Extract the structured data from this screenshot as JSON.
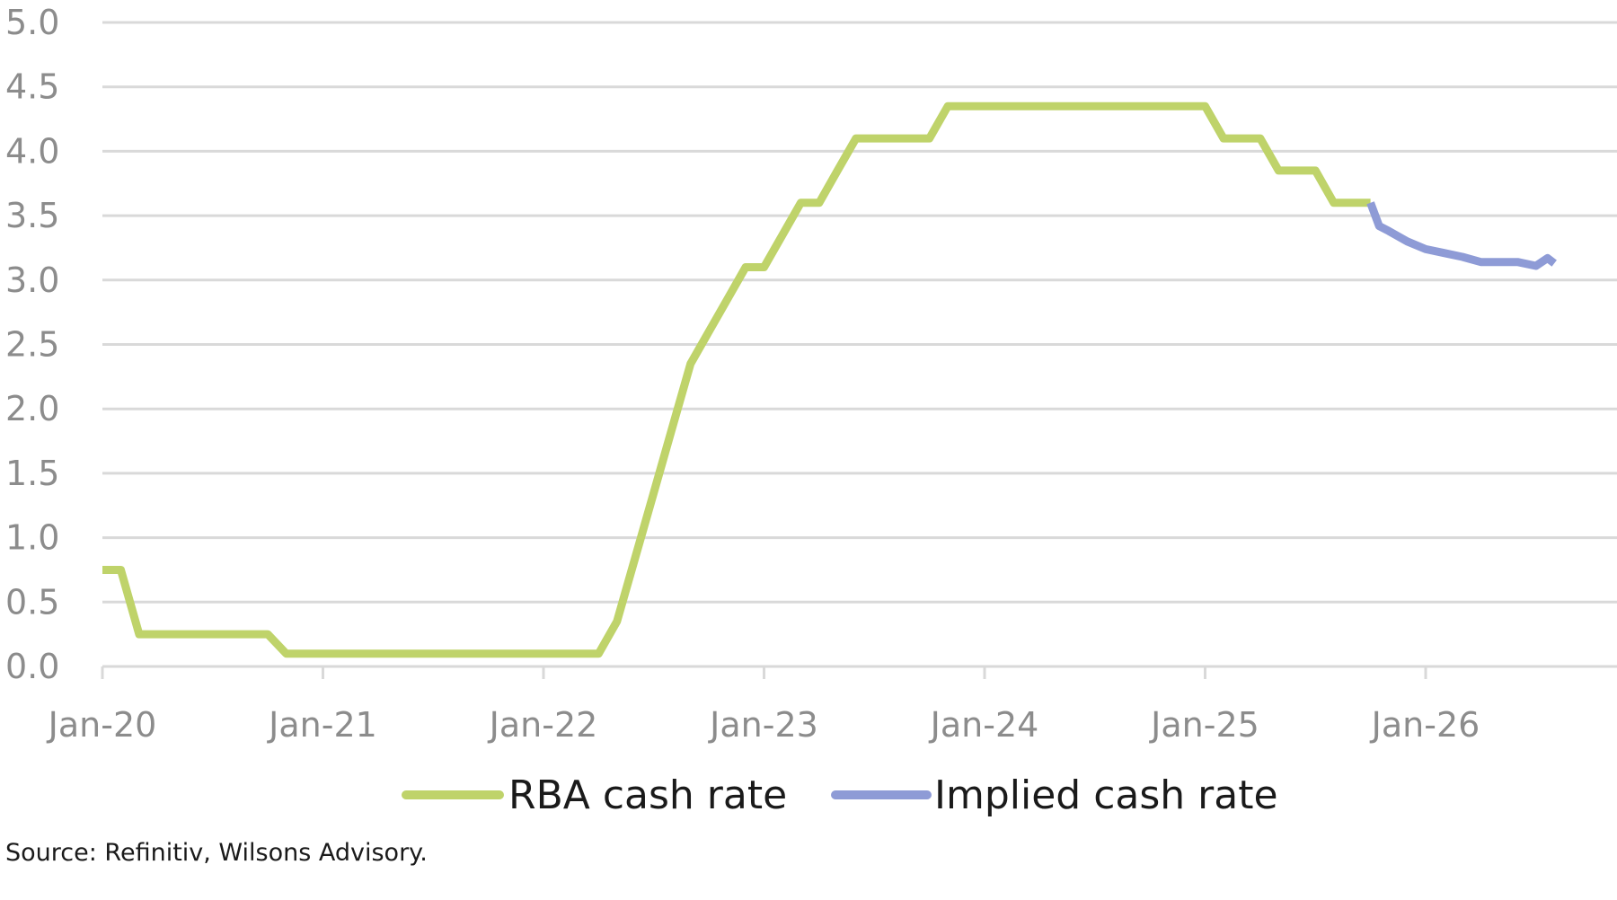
{
  "chart_data": {
    "type": "line",
    "title": "",
    "xlabel": "",
    "ylabel": "",
    "ylim": [
      0,
      5
    ],
    "yticks": [
      "0.0",
      "0.5",
      "1.0",
      "1.5",
      "2.0",
      "2.5",
      "3.0",
      "3.5",
      "4.0",
      "4.5",
      "5.0"
    ],
    "xticks": [
      "Jan-20",
      "Jan-21",
      "Jan-22",
      "Jan-23",
      "Jan-24",
      "Jan-25",
      "Jan-26"
    ],
    "grid": true,
    "legend_position": "bottom",
    "series": [
      {
        "name": "RBA cash rate",
        "color": "#bfd36a",
        "points": [
          [
            "2020-01",
            0.75
          ],
          [
            "2020-02",
            0.75
          ],
          [
            "2020-03",
            0.25
          ],
          [
            "2020-04",
            0.25
          ],
          [
            "2020-05",
            0.25
          ],
          [
            "2020-06",
            0.25
          ],
          [
            "2020-07",
            0.25
          ],
          [
            "2020-08",
            0.25
          ],
          [
            "2020-09",
            0.25
          ],
          [
            "2020-10",
            0.25
          ],
          [
            "2020-11",
            0.1
          ],
          [
            "2020-12",
            0.1
          ],
          [
            "2021-01",
            0.1
          ],
          [
            "2021-02",
            0.1
          ],
          [
            "2021-03",
            0.1
          ],
          [
            "2021-04",
            0.1
          ],
          [
            "2021-05",
            0.1
          ],
          [
            "2021-06",
            0.1
          ],
          [
            "2021-07",
            0.1
          ],
          [
            "2021-08",
            0.1
          ],
          [
            "2021-09",
            0.1
          ],
          [
            "2021-10",
            0.1
          ],
          [
            "2021-11",
            0.1
          ],
          [
            "2021-12",
            0.1
          ],
          [
            "2022-01",
            0.1
          ],
          [
            "2022-02",
            0.1
          ],
          [
            "2022-03",
            0.1
          ],
          [
            "2022-04",
            0.1
          ],
          [
            "2022-05",
            0.35
          ],
          [
            "2022-06",
            0.85
          ],
          [
            "2022-07",
            1.35
          ],
          [
            "2022-08",
            1.85
          ],
          [
            "2022-09",
            2.35
          ],
          [
            "2022-10",
            2.6
          ],
          [
            "2022-11",
            2.85
          ],
          [
            "2022-12",
            3.1
          ],
          [
            "2023-01",
            3.1
          ],
          [
            "2023-02",
            3.35
          ],
          [
            "2023-03",
            3.6
          ],
          [
            "2023-04",
            3.6
          ],
          [
            "2023-05",
            3.85
          ],
          [
            "2023-06",
            4.1
          ],
          [
            "2023-07",
            4.1
          ],
          [
            "2023-08",
            4.1
          ],
          [
            "2023-09",
            4.1
          ],
          [
            "2023-10",
            4.1
          ],
          [
            "2023-11",
            4.35
          ],
          [
            "2023-12",
            4.35
          ],
          [
            "2024-01",
            4.35
          ],
          [
            "2024-02",
            4.35
          ],
          [
            "2024-03",
            4.35
          ],
          [
            "2024-04",
            4.35
          ],
          [
            "2024-05",
            4.35
          ],
          [
            "2024-06",
            4.35
          ],
          [
            "2024-07",
            4.35
          ],
          [
            "2024-08",
            4.35
          ],
          [
            "2024-09",
            4.35
          ],
          [
            "2024-10",
            4.35
          ],
          [
            "2024-11",
            4.35
          ],
          [
            "2024-12",
            4.35
          ],
          [
            "2025-01",
            4.35
          ],
          [
            "2025-02",
            4.1
          ],
          [
            "2025-03",
            4.1
          ],
          [
            "2025-04",
            4.1
          ],
          [
            "2025-05",
            3.85
          ],
          [
            "2025-06",
            3.85
          ],
          [
            "2025-07",
            3.85
          ],
          [
            "2025-08",
            3.6
          ],
          [
            "2025-09",
            3.6
          ],
          [
            "2025-10",
            3.6
          ]
        ]
      },
      {
        "name": "Implied cash rate",
        "color": "#8e9bd6",
        "points": [
          [
            "2025-10",
            3.6
          ],
          [
            "2025-10-15",
            3.42
          ],
          [
            "2025-11",
            3.38
          ],
          [
            "2025-12",
            3.3
          ],
          [
            "2026-01",
            3.24
          ],
          [
            "2026-02",
            3.21
          ],
          [
            "2026-03",
            3.18
          ],
          [
            "2026-04",
            3.14
          ],
          [
            "2026-05",
            3.14
          ],
          [
            "2026-06",
            3.14
          ],
          [
            "2026-07",
            3.11
          ],
          [
            "2026-07-20",
            3.17
          ],
          [
            "2026-08",
            3.13
          ]
        ]
      }
    ]
  },
  "source": "Source: Refinitiv, Wilsons Advisory."
}
